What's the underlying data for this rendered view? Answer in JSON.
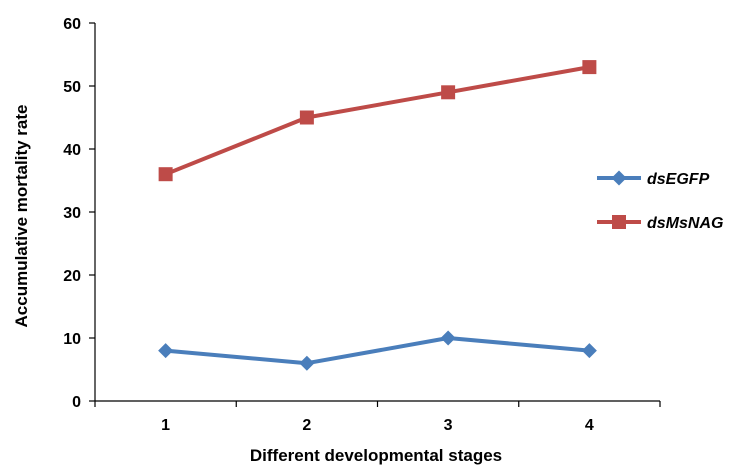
{
  "chart_data": {
    "type": "line",
    "x": [
      "1",
      "2",
      "3",
      "4"
    ],
    "xlabel": "Different developmental stages",
    "ylabel": "Accumulative mortality rate",
    "ylim": [
      0,
      60
    ],
    "yticks": [
      0,
      10,
      20,
      30,
      40,
      50,
      60
    ],
    "grid": false,
    "legend_position": "right",
    "series": [
      {
        "name": "dsEGFP",
        "values": [
          8,
          6,
          10,
          8
        ],
        "color": "#4a7ebb",
        "marker": "diamond"
      },
      {
        "name": "dsMsNAG",
        "values": [
          36,
          45,
          49,
          53
        ],
        "color": "#be4b48",
        "marker": "square"
      }
    ]
  }
}
